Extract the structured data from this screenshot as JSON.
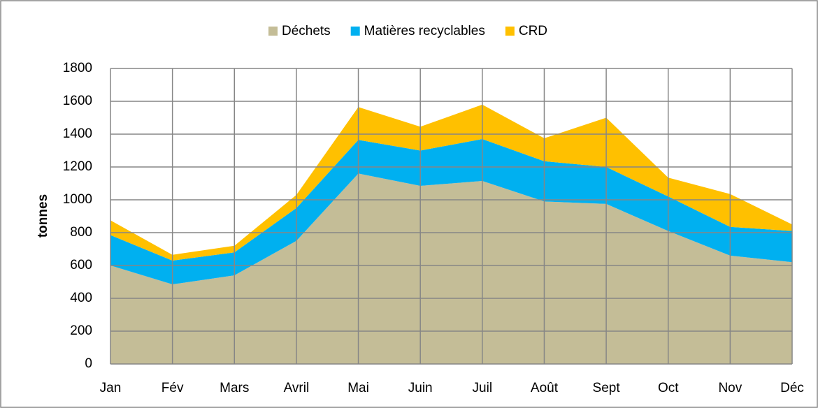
{
  "chart_data": {
    "type": "stacked_area",
    "categories": [
      "Jan",
      "Fév",
      "Mars",
      "Avril",
      "Mai",
      "Juin",
      "Juil",
      "Août",
      "Sept",
      "Oct",
      "Nov",
      "Déc"
    ],
    "series": [
      {
        "name": "Déchets",
        "color": "#c4bd97",
        "values": [
          600,
          485,
          540,
          750,
          1160,
          1085,
          1115,
          990,
          975,
          810,
          660,
          620
        ]
      },
      {
        "name": "Matières recyclables",
        "color": "#00b0f0",
        "values": [
          185,
          145,
          140,
          200,
          205,
          215,
          255,
          245,
          225,
          210,
          175,
          190
        ]
      },
      {
        "name": "CRD",
        "color": "#ffc000",
        "values": [
          90,
          35,
          40,
          80,
          200,
          145,
          210,
          140,
          300,
          115,
          200,
          40
        ]
      }
    ],
    "y_label": "tonnes",
    "ylim": [
      0,
      1800
    ],
    "yticks": [
      0,
      200,
      400,
      600,
      800,
      1000,
      1200,
      1400,
      1600,
      1800
    ],
    "grid": true,
    "legend": "top"
  }
}
